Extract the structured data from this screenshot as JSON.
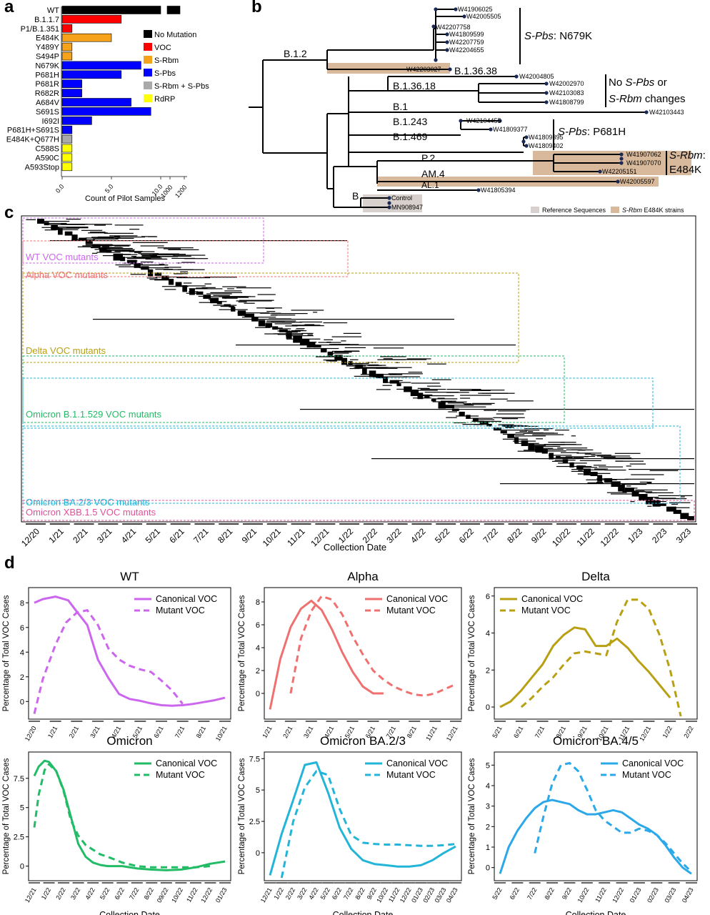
{
  "panel_labels": {
    "a": "a",
    "b": "b",
    "c": "c",
    "d": "d"
  },
  "colors": {
    "no_mutation": "#000000",
    "voc": "#ff0000",
    "s_rbm": "#f7a21b",
    "s_pbs": "#0000ff",
    "s_rbm_s_pbs": "#aaaaaa",
    "rdrp": "#ffff00",
    "wt": "#cc66ee",
    "alpha": "#f07070",
    "delta": "#b8a012",
    "omicron": "#22bb66",
    "ba23": "#22b5d8",
    "ba45": "#2aa8ea",
    "omicron_xbb": "#e0509a",
    "beige": "#d9b99b",
    "ref_grey": "#d8d0cc"
  },
  "panel_a": {
    "chart_data": {
      "type": "bar",
      "categories": [
        "WT",
        "B.1.1.7",
        "P1/B.1.351",
        "E484K",
        "Y489Y",
        "S494P",
        "N679K",
        "P681H",
        "P681R",
        "R682R",
        "A684V",
        "S691S",
        "I692I",
        "P681H+S691S",
        "E484K+Q677H",
        "C588S",
        "A590C",
        "A593Stop"
      ],
      "values": [
        1100,
        6,
        1,
        5,
        1,
        1,
        8,
        6,
        2,
        2,
        7,
        9,
        3,
        1,
        1,
        1,
        1,
        1
      ],
      "groups": [
        "No Mutation",
        "VOC",
        "VOC",
        "S-Rbm",
        "S-Rbm",
        "S-Rbm",
        "S-Pbs",
        "S-Pbs",
        "S-Pbs",
        "S-Pbs",
        "S-Pbs",
        "S-Pbs",
        "S-Pbs",
        "S-Pbs",
        "S-Rbm + S-Pbs",
        "RdRP",
        "RdRP",
        "RdRP"
      ],
      "legend": [
        "No Mutation",
        "VOC",
        "S-Rbm",
        "S-Pbs",
        "S-Rbm + S-Pbs",
        "RdRP"
      ],
      "xlabel": "Count of Pilot Samples",
      "xticks_low": [
        "0.0",
        "5.0",
        "10.0"
      ],
      "xticks_high": [
        "1000",
        "1200"
      ]
    }
  },
  "panel_b": {
    "clade_labels": [
      "B.1.2",
      "B.1.36.38",
      "B.1.36.18",
      "B.1",
      "B.1.243",
      "B.1.469",
      "P.2",
      "AM.4",
      "AL.1",
      "B"
    ],
    "tips": [
      "W41906025",
      "W42005505",
      "W42207758",
      "W41809599",
      "W42207759",
      "W42204655",
      "W42203027",
      "W42004805",
      "W42002970",
      "W42103083",
      "W41808799",
      "W42103443",
      "W42104455",
      "W41809377",
      "W41809395",
      "W41809402",
      "W41907062",
      "W41907070",
      "W42205151",
      "W42005597",
      "W41805394",
      "Control",
      "MN908947"
    ],
    "annotations": {
      "spbs_n679k_italic": "S-Pbs",
      "spbs_n679k_rest": ": N679K",
      "no_change_1": "No ",
      "no_change_spbs": "S-Pbs",
      "no_change_or": " or",
      "no_change_srbm": "S-Rbm",
      "no_change_rest": " changes",
      "spbs_p681h_italic": "S-Pbs",
      "spbs_p681h_rest": ": P681H",
      "srbm_italic": "S-Rbm",
      "srbm_colon": ":",
      "srbm_e484k": "E484K"
    },
    "legend": {
      "ref": "Reference Sequences",
      "e484k_italic": "S-Rbm",
      "e484k_rest": " E484K strains"
    }
  },
  "panel_c": {
    "box_labels": [
      "WT VOC mutants",
      "Alpha VOC mutants",
      "Delta VOC mutants",
      "Omicron B.1.1.529  VOC mutants",
      "Omicron BA.2/3 VOC mutants",
      "Omicron XBB.1.5 VOC mutants"
    ],
    "x_ticks": [
      "12/20",
      "1/21",
      "2/21",
      "3/21",
      "4/21",
      "5/21",
      "6/21",
      "7/21",
      "8/21",
      "9/21",
      "10/21",
      "11/21",
      "12/21",
      "1/22",
      "2/22",
      "3/22",
      "4/22",
      "5/22",
      "6/22",
      "7/22",
      "8/22",
      "9/22",
      "10/22",
      "11/22",
      "12/22",
      "1/23",
      "2/23",
      "3/23"
    ],
    "xlabel": "Collection Date"
  },
  "panel_d": {
    "ylabel": "Percentage of Total VOC Cases",
    "legend_canonical": "Canonical VOC",
    "legend_mutant": "Mutant VOC",
    "xlabel": "Collection Date",
    "chart_data": [
      {
        "type": "line",
        "title": "WT",
        "color": "wt",
        "x": [
          "12/20",
          "1/21",
          "2/21",
          "3/21",
          "4/21",
          "5/21",
          "6/21",
          "7/21",
          "8/21",
          "10/21"
        ],
        "ylim": [
          -1.2,
          9
        ],
        "yticks": [
          0,
          2,
          4,
          6,
          8
        ],
        "series": [
          {
            "name": "Canonical VOC",
            "x": [
              0,
              0.4,
              1,
              1.6,
              2,
              2.5,
              3,
              3.5,
              4,
              4.5,
              5,
              5.5,
              6,
              6.5,
              7,
              7.5,
              8,
              8.5,
              9
            ],
            "values": [
              8,
              8.3,
              8.5,
              8.2,
              7.3,
              6.2,
              3.4,
              1.9,
              0.6,
              0.2,
              0.05,
              -0.15,
              -0.3,
              -0.35,
              -0.3,
              -0.2,
              -0.05,
              0.1,
              0.3
            ]
          },
          {
            "name": "Mutant VOC",
            "x": [
              0,
              0.4,
              1,
              1.5,
              2,
              2.5,
              3,
              3.5,
              4,
              4.5,
              5,
              5.5,
              6,
              6.5,
              7
            ],
            "values": [
              -1,
              1.8,
              4.6,
              6.4,
              7.2,
              7.4,
              6.2,
              4.3,
              3.4,
              2.9,
              2.6,
              2.4,
              1.7,
              0.9,
              -0.2
            ]
          }
        ]
      },
      {
        "type": "line",
        "title": "Alpha",
        "color": "alpha",
        "x": [
          "1/21",
          "2/21",
          "3/21",
          "4/21",
          "5/21",
          "6/21",
          "7/21",
          "8/21",
          "11/21",
          "12/21"
        ],
        "ylim": [
          -2,
          9
        ],
        "yticks": [
          0,
          2,
          4,
          6,
          8
        ],
        "series": [
          {
            "name": "Canonical VOC",
            "x": [
              0,
              0.5,
              1,
              1.5,
              2,
              2.5,
              3,
              3.5,
              4,
              4.5,
              5,
              5.5
            ],
            "values": [
              -1.4,
              3,
              5.8,
              7.4,
              8.1,
              7.3,
              5.6,
              3.6,
              1.9,
              0.6,
              0,
              0
            ]
          },
          {
            "name": "Mutant VOC",
            "x": [
              1,
              1.5,
              2,
              2.5,
              3,
              3.5,
              4,
              4.5,
              5,
              5.5,
              6,
              6.5,
              7,
              7.5,
              8,
              8.5,
              9
            ],
            "values": [
              0,
              4.8,
              7.2,
              8.5,
              8.2,
              6.9,
              5,
              3.4,
              2,
              1.2,
              0.6,
              0.2,
              -0.1,
              -0.2,
              0,
              0.4,
              0.8
            ]
          }
        ]
      },
      {
        "type": "line",
        "title": "Delta",
        "color": "delta",
        "x": [
          "5/21",
          "6/21",
          "7/21",
          "8/21",
          "9/21",
          "10/21",
          "11/21",
          "12/21",
          "1/22",
          "2/22"
        ],
        "ylim": [
          -0.5,
          6.3
        ],
        "yticks": [
          0,
          2,
          4,
          6
        ],
        "series": [
          {
            "name": "Canonical VOC",
            "x": [
              0,
              0.5,
              1,
              1.5,
              2,
              2.5,
              3,
              3.5,
              4,
              4.5,
              5,
              5.5,
              6,
              6.5,
              7,
              7.5,
              8
            ],
            "values": [
              0,
              0.3,
              0.9,
              1.6,
              2.3,
              3.3,
              3.9,
              4.3,
              4.2,
              3.3,
              3.3,
              3.7,
              3.2,
              2.5,
              1.9,
              1.2,
              0.5
            ]
          },
          {
            "name": "Mutant VOC",
            "x": [
              1,
              1.5,
              2,
              2.5,
              3,
              3.5,
              4,
              4.5,
              5,
              5.5,
              6,
              6.5,
              7,
              7.5,
              8,
              8.5
            ],
            "values": [
              0,
              0.5,
              1.1,
              1.6,
              2.3,
              2.9,
              3,
              2.9,
              2.8,
              4.6,
              5.8,
              5.8,
              5.3,
              3.9,
              2,
              -0.5
            ]
          }
        ]
      },
      {
        "type": "line",
        "title": "Omicron",
        "color": "omicron",
        "x": [
          "12/21",
          "1/22",
          "2/22",
          "3/22",
          "4/22",
          "5/22",
          "6/22",
          "7/22",
          "8/22",
          "09/22",
          "10/22",
          "11/22",
          "12/22",
          "01/23"
        ],
        "ylim": [
          -1,
          9.5
        ],
        "yticks": [
          0,
          2.5,
          5,
          7.5
        ],
        "series": [
          {
            "name": "Canonical VOC",
            "x": [
              0,
              0.3,
              0.7,
              1,
              1.5,
              2,
              2.5,
              3,
              3.5,
              4,
              4.5,
              5,
              6,
              7,
              8,
              9,
              10,
              11,
              12,
              13
            ],
            "values": [
              7.7,
              8.5,
              9,
              8.9,
              8.1,
              6.5,
              4.2,
              1.9,
              0.8,
              0.3,
              0.1,
              0,
              0,
              -0.2,
              -0.3,
              -0.35,
              -0.3,
              -0.1,
              0.2,
              0.4
            ]
          },
          {
            "name": "Mutant VOC",
            "x": [
              0,
              0.3,
              0.7,
              1,
              1.5,
              2,
              2.5,
              3,
              3.5,
              4,
              4.5,
              5,
              6,
              7,
              8,
              9,
              10,
              11,
              12
            ],
            "values": [
              3.3,
              6.1,
              8.2,
              8.7,
              8.1,
              6.4,
              3.9,
              2.6,
              1.8,
              1.4,
              1,
              0.8,
              0.3,
              0,
              -0.1,
              -0.1,
              -0.1,
              -0.1,
              0
            ]
          }
        ]
      },
      {
        "type": "line",
        "title": "Omicron BA.2/3",
        "color": "ba23",
        "x": [
          "12/21",
          "1/22",
          "2/22",
          "3/22",
          "4/22",
          "5/22",
          "6/22",
          "7/22",
          "8/22",
          "9/22",
          "10/22",
          "11/22",
          "12/22",
          "01/23",
          "02/23",
          "03/23",
          "04/23"
        ],
        "ylim": [
          -2,
          7.8
        ],
        "yticks": [
          0,
          2.5,
          5,
          7.5
        ],
        "series": [
          {
            "name": "Canonical VOC",
            "x": [
              0,
              1,
              2,
              3,
              4,
              5,
              6,
              7,
              8,
              9,
              10,
              11,
              12,
              13,
              14,
              15,
              16
            ],
            "values": [
              -1.8,
              1.5,
              4.2,
              7,
              7.2,
              4.8,
              2,
              0.3,
              -0.6,
              -0.9,
              -1,
              -1.1,
              -1.1,
              -1,
              -0.6,
              0,
              0.5
            ]
          },
          {
            "name": "Mutant VOC",
            "x": [
              1,
              2,
              3,
              4,
              5,
              6,
              7,
              8,
              9,
              10,
              11,
              12,
              13,
              14,
              15,
              16
            ],
            "values": [
              -2,
              2.5,
              5.2,
              6.5,
              6.2,
              3.5,
              1.4,
              0.8,
              0.7,
              0.65,
              0.65,
              0.6,
              0.55,
              0.55,
              0.6,
              0.7
            ]
          }
        ]
      },
      {
        "type": "line",
        "title": "Omicron BA.4/5",
        "color": "ba45",
        "x": [
          "5/22",
          "6/22",
          "7/22",
          "8/22",
          "9/22",
          "10/22",
          "11/22",
          "12/22",
          "01/23",
          "02/23",
          "03/23",
          "04/23"
        ],
        "ylim": [
          -0.5,
          5.5
        ],
        "yticks": [
          0,
          1,
          2,
          3,
          4,
          5
        ],
        "series": [
          {
            "name": "Canonical VOC",
            "x": [
              0,
              0.5,
              1,
              1.5,
              2,
              2.5,
              3,
              3.5,
              4,
              4.5,
              5,
              5.5,
              6,
              6.5,
              7,
              7.5,
              8,
              8.5,
              9,
              9.5,
              10,
              10.5,
              11
            ],
            "values": [
              -0.3,
              1,
              1.8,
              2.4,
              2.9,
              3.2,
              3.3,
              3.2,
              3.1,
              2.8,
              2.6,
              2.6,
              2.7,
              2.8,
              2.7,
              2.4,
              2.1,
              1.9,
              1.6,
              1.1,
              0.5,
              0,
              -0.3
            ]
          },
          {
            "name": "Mutant VOC",
            "x": [
              2,
              2.5,
              3,
              3.5,
              4,
              4.5,
              5,
              5.5,
              6,
              6.5,
              7,
              7.5,
              8,
              8.5,
              9,
              9.5,
              10,
              10.5,
              11
            ],
            "values": [
              0.7,
              2.5,
              4.1,
              5,
              5.1,
              4.7,
              3.8,
              2.8,
              2.3,
              2,
              1.7,
              1.7,
              1.9,
              1.8,
              1.6,
              1.2,
              0.7,
              0.2,
              -0.2
            ]
          }
        ]
      }
    ]
  }
}
